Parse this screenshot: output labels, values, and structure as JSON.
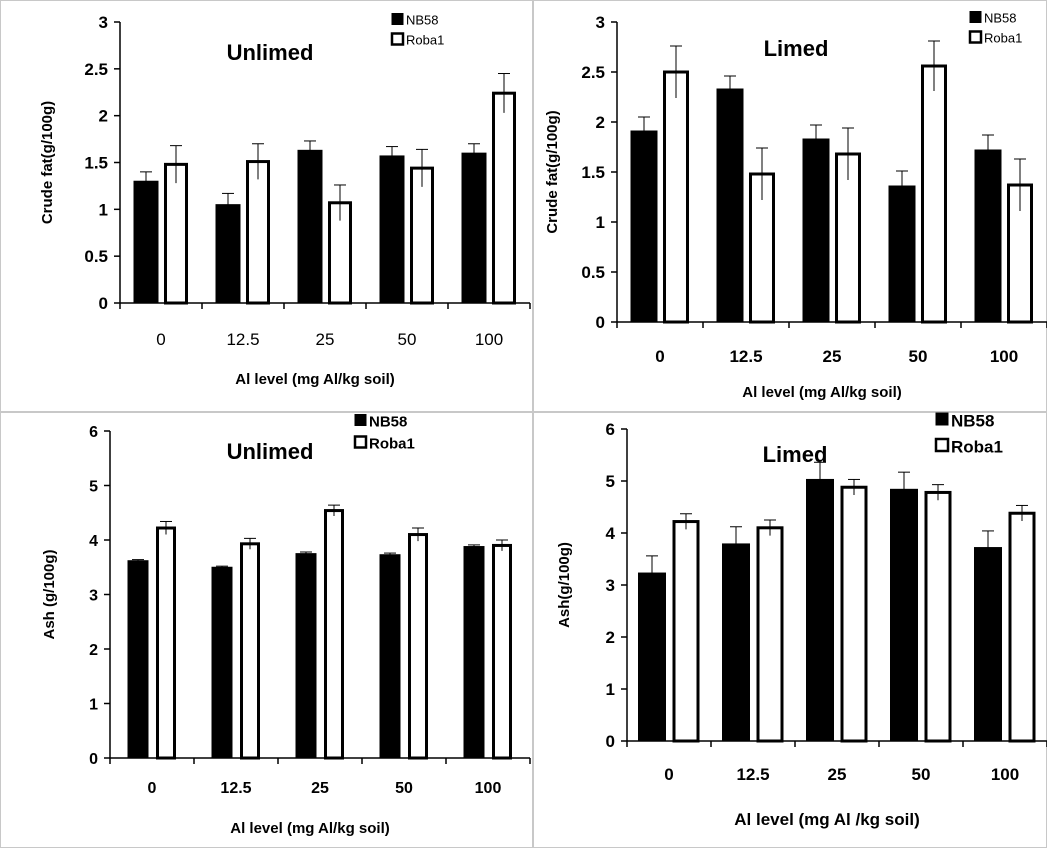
{
  "chart_data": [
    {
      "type": "bar",
      "title": "Unlimed",
      "xlabel": "Al level (mg Al/kg soil)",
      "ylabel": "Crude fat(g/100g)",
      "categories": [
        "0",
        "12.5",
        "25",
        "50",
        "100"
      ],
      "ylim": [
        0,
        3
      ],
      "yticks": [
        "0",
        "0.5",
        "1",
        "1.5",
        "2",
        "2.5",
        "3"
      ],
      "series": [
        {
          "name": "NB58",
          "color": "#000000",
          "values": [
            1.3,
            1.05,
            1.63,
            1.57,
            1.6
          ],
          "errors": [
            0.1,
            0.12,
            0.1,
            0.1,
            0.1
          ]
        },
        {
          "name": "Roba1",
          "color": "#ffffff",
          "values": [
            1.48,
            1.51,
            1.07,
            1.44,
            2.24
          ],
          "errors": [
            0.2,
            0.19,
            0.19,
            0.2,
            0.21
          ]
        }
      ],
      "legend_position": "top-right"
    },
    {
      "type": "bar",
      "title": "Limed",
      "xlabel": "Al level (mg Al/kg soil)",
      "ylabel": "Crude fat(g/100g)",
      "categories": [
        "0",
        "12.5",
        "25",
        "50",
        "100"
      ],
      "ylim": [
        0,
        3
      ],
      "yticks": [
        "0",
        "0.5",
        "1",
        "1.5",
        "2",
        "2.5",
        "3"
      ],
      "series": [
        {
          "name": "NB58",
          "color": "#000000",
          "values": [
            1.91,
            2.33,
            1.83,
            1.36,
            1.72
          ],
          "errors": [
            0.14,
            0.13,
            0.14,
            0.15,
            0.15
          ]
        },
        {
          "name": "Roba1",
          "color": "#ffffff",
          "values": [
            2.5,
            1.48,
            1.68,
            2.56,
            1.37
          ],
          "errors": [
            0.26,
            0.26,
            0.26,
            0.25,
            0.26
          ]
        }
      ],
      "legend_position": "top-right"
    },
    {
      "type": "bar",
      "title": "Unlimed",
      "xlabel": "Al level (mg Al/kg soil)",
      "ylabel": "Ash (g/100g)",
      "categories": [
        "0",
        "12.5",
        "25",
        "50",
        "100"
      ],
      "ylim": [
        0,
        6
      ],
      "yticks": [
        "0",
        "1",
        "2",
        "3",
        "4",
        "5",
        "6"
      ],
      "series": [
        {
          "name": "NB58",
          "color": "#000000",
          "values": [
            3.62,
            3.5,
            3.75,
            3.73,
            3.88
          ],
          "errors": [
            0.02,
            0.02,
            0.03,
            0.03,
            0.03
          ]
        },
        {
          "name": "Roba1",
          "color": "#ffffff",
          "values": [
            4.22,
            3.93,
            4.54,
            4.1,
            3.9
          ],
          "errors": [
            0.12,
            0.1,
            0.1,
            0.12,
            0.1
          ]
        }
      ],
      "legend_position": "top-right"
    },
    {
      "type": "bar",
      "title": "Limed",
      "xlabel": "Al level (mg Al /kg soil)",
      "ylabel": "Ash(g/100g)",
      "categories": [
        "0",
        "12.5",
        "25",
        "50",
        "100"
      ],
      "ylim": [
        0,
        6
      ],
      "yticks": [
        "0",
        "1",
        "2",
        "3",
        "4",
        "5",
        "6"
      ],
      "series": [
        {
          "name": "NB58",
          "color": "#000000",
          "values": [
            3.23,
            3.79,
            5.03,
            4.84,
            3.72
          ],
          "errors": [
            0.33,
            0.33,
            0.33,
            0.33,
            0.32
          ]
        },
        {
          "name": "Roba1",
          "color": "#ffffff",
          "values": [
            4.22,
            4.1,
            4.88,
            4.78,
            4.38
          ],
          "errors": [
            0.15,
            0.15,
            0.15,
            0.15,
            0.15
          ]
        }
      ],
      "legend_position": "top-right"
    }
  ]
}
